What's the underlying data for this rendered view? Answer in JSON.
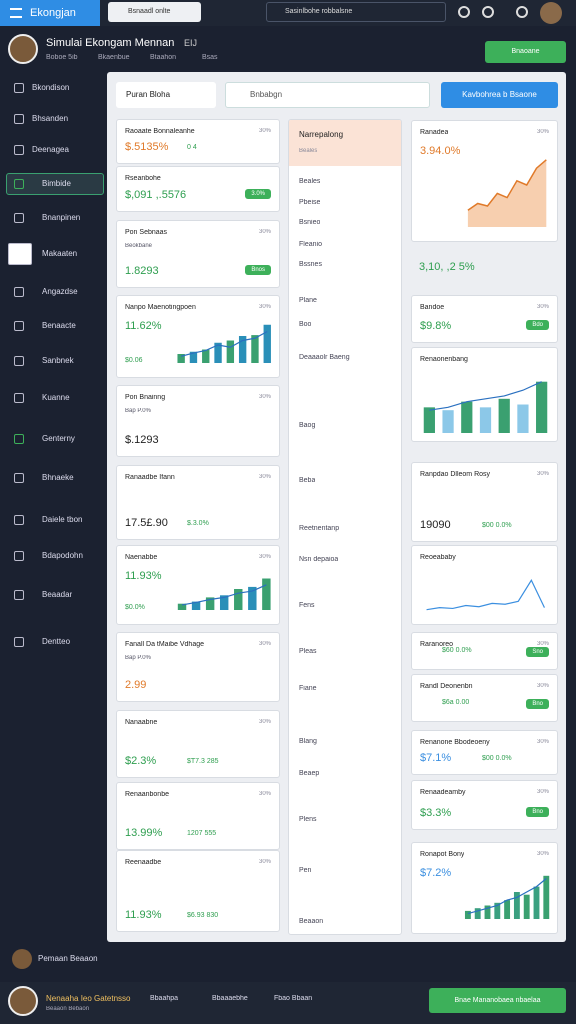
{
  "topbar": {
    "brand": "Ekongjan",
    "search": "Bsnaadl onlte",
    "account": "Sasinlbohe robbalsne"
  },
  "header": {
    "title": "Simulai Ekongam Mennan",
    "badge": "EIJ",
    "meta": [
      "Boboe 5ib",
      "Bkaenbue",
      "Btaahon",
      "Bsas"
    ],
    "button": "Bnaoane"
  },
  "sidebar": [
    "Bkondison",
    "Bhsanden",
    "Deenagea",
    "Bimbide",
    "Bnanpinen",
    "Makaaten",
    "Angazdse",
    "Benaacte",
    "Sanbnek",
    "Kuanne",
    "Genterny",
    "Bhnaeke",
    "Daiele tbon",
    "Bdapodohn",
    "Beaadar",
    "Dentteo"
  ],
  "toolbar": {
    "tab": "Puran Bloha",
    "search": "Bnbabgn",
    "button": "Kavbohrea b Bsaone"
  },
  "left_cards": [
    {
      "title": "Raoaate Bonnaleanhe",
      "tag": "30%",
      "value": "$.5135%",
      "color": "#e07a2a",
      "note": "0 4"
    },
    {
      "title": "Rseanbohe",
      "value": "$,091 ,.5576",
      "color": "#2e9e4f",
      "badge": "3.0%"
    },
    {
      "title": "Pon Sebnaas",
      "tag": "30%",
      "sub": "Beokbane",
      "value": "1.8293",
      "color": "#2e9e4f",
      "badge": "Bnos"
    },
    {
      "title": "Nanpo Maenotingpoen",
      "tag": "30%",
      "value": "11.62%",
      "color": "#2e9e4f",
      "note": "$0.06",
      "chart": {
        "type": "bar",
        "values": [
          20,
          25,
          30,
          45,
          50,
          60,
          62,
          85
        ],
        "line": [
          15,
          22,
          28,
          40,
          35,
          50,
          55,
          70
        ],
        "ylim": [
          0,
          100
        ],
        "color": "#2a8fb8"
      }
    },
    {
      "title": "Pon Bnainng",
      "tag": "30%",
      "sub": "Bap P.0%",
      "value": "$.1293",
      "color": "#222"
    },
    {
      "title": "Ranaadbe Ifann",
      "tag": "30%",
      "note": "$.3.0%",
      "value": "17.5£.90",
      "color": "#222"
    },
    {
      "title": "Naenabbe",
      "tag": "30%",
      "value": "11.93%",
      "color": "#2e9e4f",
      "note": "$0.0%",
      "chart": {
        "type": "bar",
        "values": [
          15,
          20,
          30,
          35,
          50,
          55,
          75
        ],
        "line": [
          12,
          18,
          25,
          30,
          40,
          45,
          60
        ],
        "ylim": [
          0,
          100
        ],
        "color": "#2a8fb8"
      }
    },
    {
      "title": "Fanall Da tMaibe Vdhage",
      "tag": "30%",
      "sub": "Bap P.0%",
      "value": "2.99",
      "color": "#e07a2a"
    },
    {
      "title": "Nanaabne",
      "tag": "30%",
      "value": "$2.3%",
      "color": "#2e9e4f",
      "note": "$T7.3 285"
    },
    {
      "title": "Renaanbonbe",
      "tag": "30%",
      "value": "13.99%",
      "color": "#2e9e4f",
      "note": "1207 555"
    },
    {
      "title": "Reenaadbe",
      "tag": "30%",
      "value": "11.93%",
      "color": "#2e9e4f",
      "note": "$6.93 830"
    }
  ],
  "middle": {
    "title": "Narrepalong",
    "sub": "Beales",
    "items": [
      "Beales",
      "Pbeise",
      "Bsnieo",
      "Fleanio",
      "Bssnes",
      "Plane",
      "Boo",
      "Deaaaolr Baeng",
      "Baog",
      "Beba",
      "Reetnentanp",
      "Nsn depaioa",
      "Fens",
      "Pleas",
      "Fiane",
      "Blang",
      "Beaep",
      "Plens",
      "Pen",
      "Beaaon"
    ]
  },
  "right_cards": [
    {
      "title": "Ranadea",
      "tag": "30%",
      "value": "3.94.0%",
      "color": "#e07a2a",
      "chart": {
        "type": "area",
        "values": [
          20,
          28,
          25,
          40,
          35,
          55,
          50,
          70,
          80
        ],
        "ylim": [
          0,
          100
        ],
        "color": "#f0a060"
      }
    },
    {
      "value": "3,10, ,2 5%",
      "color": "#2e9e4f"
    },
    {
      "title": "Bandoe",
      "tag": "30%",
      "value": "$9.8%",
      "color": "#2e9e4f",
      "badge": "Bdo"
    },
    {
      "title": "Renaonenbang",
      "chart": {
        "type": "bar",
        "values": [
          45,
          40,
          55,
          45,
          60,
          50,
          90
        ],
        "line": [
          40,
          45,
          55,
          60,
          65,
          75,
          90
        ],
        "ylim": [
          0,
          100
        ],
        "color": "#8cc8e8"
      }
    },
    {
      "title": "Ranpdao Dlleom Rosy",
      "tag": "30%",
      "note": "$00 0.0%",
      "value": "19090",
      "color": "#222"
    },
    {
      "title": "Reoeababy",
      "chart": {
        "type": "line",
        "values": [
          15,
          20,
          18,
          25,
          22,
          30,
          28,
          35,
          85,
          20
        ],
        "ylim": [
          0,
          100
        ],
        "color": "#3b8fe0"
      }
    },
    {
      "title": "Raranoreo",
      "tag": "30%",
      "note": "$60 0.0%",
      "badge": "Sno"
    },
    {
      "title": "Randl Deonenbn",
      "tag": "30%",
      "note": "$6a 0.00",
      "badge": "Bno"
    },
    {
      "title": "Renanone Bbodeoeny",
      "tag": "30%",
      "value": "$7.1%",
      "color": "#3b8fe0",
      "note": "$00 0.0%"
    },
    {
      "title": "Renaadeamby",
      "tag": "30%",
      "value": "$3.3%",
      "color": "#2e9e4f",
      "badge": "Bno"
    },
    {
      "title": "Ronapot Bony",
      "tag": "30%",
      "value": "$7.2%",
      "color": "#3b8fe0",
      "chart": {
        "type": "bar",
        "values": [
          15,
          20,
          25,
          30,
          35,
          50,
          45,
          60,
          80
        ],
        "line": [
          10,
          15,
          20,
          25,
          35,
          40,
          50,
          60,
          75
        ],
        "ylim": [
          0,
          100
        ],
        "color": "#3aa080"
      }
    }
  ],
  "footer": {
    "user": "Pemaan Beaaon",
    "name": "Nenaaha Ieo Gatetnsso",
    "sub": "Beaaon Bebaon",
    "items": [
      "Bbaahpa",
      "Bbaaaebhe",
      "Fbao Bbaan"
    ],
    "button": "Bnae Mananobaea nbaelaa"
  }
}
